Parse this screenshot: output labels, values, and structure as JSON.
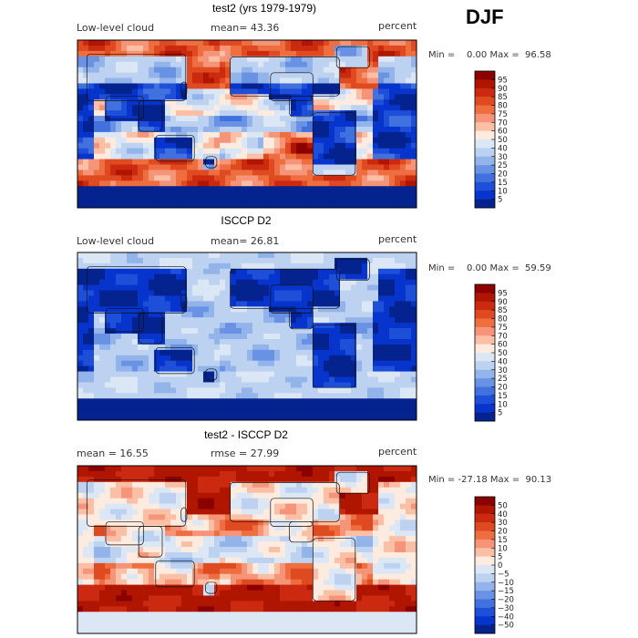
{
  "season": "DJF",
  "chart_data": [
    {
      "type": "heatmap",
      "title": "test2 (yrs 1979-1979)",
      "left_label": "Low-level cloud",
      "mean_text": "mean=  43.36",
      "units": "percent",
      "minmax": "Min =    0.00 Max =  96.58",
      "colorbar_ticks": [
        "95",
        "90",
        "85",
        "80",
        "75",
        "70",
        "60",
        "50",
        "40",
        "30",
        "25",
        "20",
        "15",
        "10",
        "5"
      ],
      "colors": [
        "#8b0000",
        "#b01500",
        "#cc2a10",
        "#e04a20",
        "#ee6e40",
        "#f59478",
        "#fbbfa5",
        "#fdebe0",
        "#dce7f6",
        "#bcd2f0",
        "#92b4ea",
        "#6a92e4",
        "#4170df",
        "#1e4fd9",
        "#0634cc",
        "#05238e"
      ],
      "field_mode": "model"
    },
    {
      "type": "heatmap",
      "title": "ISCCP D2",
      "left_label": "Low-level cloud",
      "mean_text": "mean=  26.81",
      "units": "percent",
      "minmax": "Min =    0.00 Max =  59.59",
      "colorbar_ticks": [
        "95",
        "90",
        "85",
        "80",
        "75",
        "70",
        "60",
        "50",
        "40",
        "30",
        "25",
        "20",
        "15",
        "10",
        "5"
      ],
      "colors": [
        "#8b0000",
        "#b01500",
        "#cc2a10",
        "#e04a20",
        "#ee6e40",
        "#f59478",
        "#fbbfa5",
        "#fdebe0",
        "#dce7f6",
        "#bcd2f0",
        "#92b4ea",
        "#6a92e4",
        "#4170df",
        "#1e4fd9",
        "#0634cc",
        "#05238e"
      ],
      "field_mode": "obs"
    },
    {
      "type": "heatmap",
      "title": "test2 - ISCCP D2",
      "left_label": "mean =   16.55",
      "mean_text": "rmse =   27.99",
      "units": "percent",
      "minmax": "Min = -27.18 Max =  90.13",
      "colorbar_ticks": [
        "50",
        "40",
        "30",
        "20",
        "15",
        "10",
        "5",
        "0",
        "−5",
        "−10",
        "−15",
        "−20",
        "−30",
        "−40",
        "−50"
      ],
      "colors": [
        "#8b0000",
        "#b01500",
        "#cc2a10",
        "#e04a20",
        "#ee6e40",
        "#f59478",
        "#fbbfa5",
        "#fdebe0",
        "#dce7f6",
        "#bcd2f0",
        "#92b4ea",
        "#6a92e4",
        "#4170df",
        "#1e4fd9",
        "#0634cc",
        "#05238e"
      ],
      "field_mode": "diff"
    }
  ]
}
